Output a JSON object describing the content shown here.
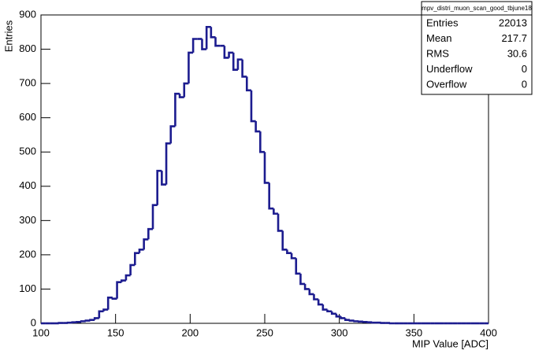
{
  "chart_data": {
    "type": "histogram",
    "x_label": "MIP Value [ADC]",
    "y_label": "Entries",
    "color": "#1c1c8f",
    "bins": [
      100,
      103,
      106,
      109,
      112,
      115,
      118,
      121,
      124,
      127,
      130,
      133,
      136,
      139,
      142,
      145,
      148,
      151,
      154,
      157,
      160,
      163,
      166,
      169,
      172,
      175,
      178,
      181,
      184,
      187,
      190,
      193,
      196,
      199,
      202,
      205,
      208,
      211,
      214,
      217,
      220,
      223,
      226,
      229,
      232,
      235,
      238,
      241,
      244,
      247,
      250,
      253,
      256,
      259,
      262,
      265,
      268,
      271,
      274,
      277,
      280,
      283,
      286,
      289,
      292,
      295,
      298,
      301,
      304,
      307,
      310,
      313,
      316,
      319,
      322,
      325,
      328,
      331,
      334,
      337,
      340,
      343,
      346,
      349,
      352,
      355,
      358,
      361,
      364,
      367,
      370,
      373,
      376,
      379,
      382,
      385,
      388,
      391,
      394,
      397,
      400
    ],
    "values": [
      0,
      0,
      0,
      0,
      1,
      1,
      2,
      3,
      4,
      6,
      8,
      10,
      15,
      35,
      40,
      75,
      72,
      120,
      125,
      140,
      170,
      205,
      215,
      245,
      275,
      345,
      445,
      405,
      525,
      575,
      670,
      660,
      700,
      790,
      830,
      830,
      800,
      865,
      835,
      810,
      810,
      775,
      790,
      740,
      770,
      720,
      680,
      590,
      560,
      500,
      410,
      335,
      320,
      270,
      215,
      205,
      190,
      145,
      115,
      100,
      85,
      70,
      55,
      40,
      35,
      28,
      20,
      15,
      10,
      8,
      6,
      5,
      4,
      3,
      2,
      2,
      1,
      1,
      0,
      0,
      0,
      0,
      0,
      0,
      0,
      0,
      0,
      0,
      0,
      0,
      0,
      0,
      0,
      0,
      0,
      0,
      0,
      0,
      0,
      0
    ],
    "xlim": [
      100,
      400
    ],
    "xticks": [
      100,
      150,
      200,
      250,
      300,
      350,
      400
    ],
    "ylim": [
      0,
      900
    ],
    "yticks": [
      0,
      100,
      200,
      300,
      400,
      500,
      600,
      700,
      800,
      900
    ],
    "stats_box": {
      "title": "mpv_distri_muon_scan_good_tbjune18",
      "rows": [
        [
          "Entries",
          22013
        ],
        [
          "Mean",
          217.7
        ],
        [
          "RMS",
          30.6
        ],
        [
          "Underflow",
          0
        ],
        [
          "Overflow",
          0
        ]
      ]
    }
  }
}
